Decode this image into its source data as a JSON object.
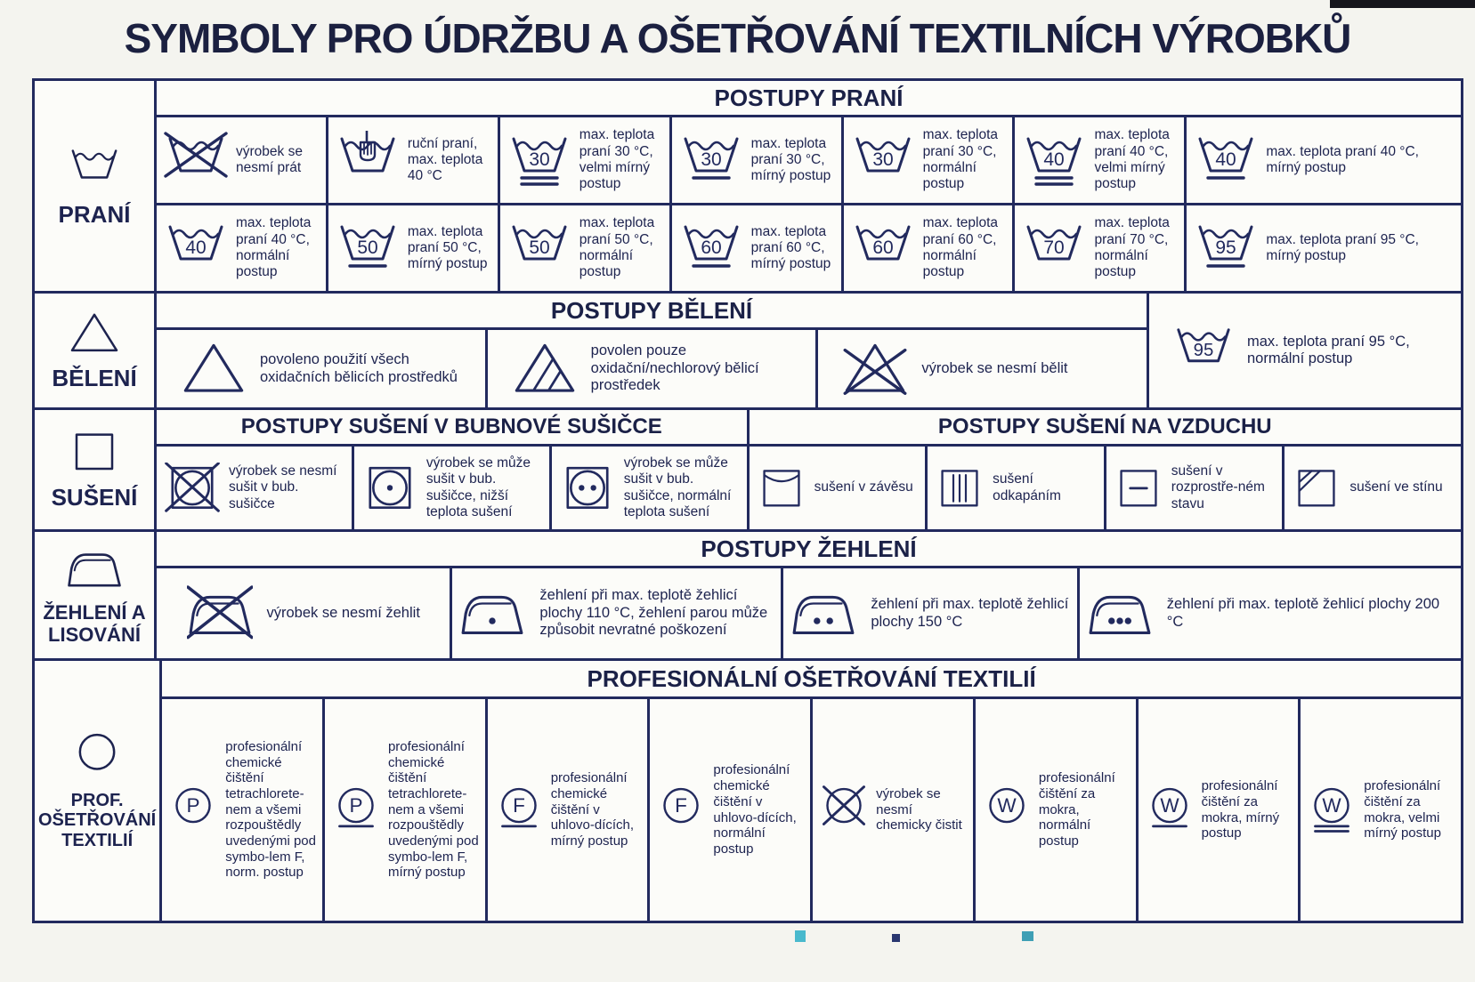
{
  "title": "SYMBOLY PRO ÚDRŽBU A OŠETŘOVÁNÍ TEXTILNÍCH VÝROBKŮ",
  "colors": {
    "ink": "#222a5e",
    "paper": "#f4f4ef",
    "cell": "#fcfcf9"
  },
  "sections": [
    {
      "id": "prani",
      "label": "PRANÍ",
      "label_icon": {
        "name": "washtub",
        "type": "washtub"
      },
      "header": "POSTUPY PRANÍ",
      "rows": [
        [
          {
            "name": "do-not-wash",
            "icon": {
              "type": "washtub",
              "crossed": true
            },
            "text": "výrobek se nesmí prát"
          },
          {
            "name": "hand-wash",
            "icon": {
              "type": "washtub",
              "hand": true
            },
            "text": "ruční praní, max. teplota 40 °C"
          },
          {
            "name": "wash-30-very-mild",
            "icon": {
              "type": "washtub",
              "number": "30",
              "bars": 2
            },
            "text": "max. teplota praní 30 °C, velmi mírný postup"
          },
          {
            "name": "wash-30-mild",
            "icon": {
              "type": "washtub",
              "number": "30",
              "bars": 1
            },
            "text": "max. teplota praní 30 °C, mírný postup"
          },
          {
            "name": "wash-30-normal",
            "icon": {
              "type": "washtub",
              "number": "30",
              "bars": 0
            },
            "text": "max. teplota praní 30 °C, normální postup"
          },
          {
            "name": "wash-40-very-mild",
            "icon": {
              "type": "washtub",
              "number": "40",
              "bars": 2
            },
            "text": "max. teplota praní 40 °C, velmi mírný postup"
          },
          {
            "name": "wash-40-mild",
            "icon": {
              "type": "washtub",
              "number": "40",
              "bars": 1
            },
            "text": "max. teplota praní 40 °C, mírný postup"
          }
        ],
        [
          {
            "name": "wash-40-normal",
            "icon": {
              "type": "washtub",
              "number": "40",
              "bars": 0
            },
            "text": "max. teplota praní 40 °C, normální postup"
          },
          {
            "name": "wash-50-mild",
            "icon": {
              "type": "washtub",
              "number": "50",
              "bars": 1
            },
            "text": "max. teplota praní 50 °C, mírný postup"
          },
          {
            "name": "wash-50-normal",
            "icon": {
              "type": "washtub",
              "number": "50",
              "bars": 0
            },
            "text": "max. teplota praní 50 °C, normální postup"
          },
          {
            "name": "wash-60-mild",
            "icon": {
              "type": "washtub",
              "number": "60",
              "bars": 1
            },
            "text": "max. teplota praní 60 °C, mírný postup"
          },
          {
            "name": "wash-60-normal",
            "icon": {
              "type": "washtub",
              "number": "60",
              "bars": 0
            },
            "text": "max. teplota praní 60 °C, normální postup"
          },
          {
            "name": "wash-70-normal",
            "icon": {
              "type": "washtub",
              "number": "70",
              "bars": 0
            },
            "text": "max. teplota praní 70 °C, normální postup"
          },
          {
            "name": "wash-95-mild",
            "icon": {
              "type": "washtub",
              "number": "95",
              "bars": 1
            },
            "text": "max. teplota praní 95 °C, mírný postup"
          }
        ]
      ]
    },
    {
      "id": "beleni",
      "label": "BĚLENÍ",
      "label_icon": {
        "name": "bleach-triangle",
        "type": "triangle",
        "variant": "plain"
      },
      "header": "POSTUPY BĚLENÍ",
      "cells": [
        {
          "name": "bleach-allowed",
          "icon": {
            "type": "triangle",
            "variant": "plain"
          },
          "text": "povoleno použití všech oxidačních bělicích prostředků"
        },
        {
          "name": "bleach-non-chlorine",
          "icon": {
            "type": "triangle",
            "variant": "lines"
          },
          "text": "povolen pouze oxidační/nechlorový bělicí prostředek"
        },
        {
          "name": "do-not-bleach",
          "icon": {
            "type": "triangle",
            "variant": "crossed"
          },
          "text": "výrobek se nesmí bělit"
        }
      ],
      "side_cell": {
        "name": "wash-95-normal",
        "icon": {
          "type": "washtub",
          "number": "95",
          "bars": 0
        },
        "text": "max. teplota praní 95 °C, normální postup"
      }
    },
    {
      "id": "suseni",
      "label": "SUŠENÍ",
      "label_icon": {
        "name": "drying-square",
        "type": "square",
        "variant": "plain"
      },
      "parts": [
        {
          "id": "drum",
          "header": "POSTUPY SUŠENÍ V BUBNOVÉ SUŠIČCE",
          "cells": [
            {
              "name": "do-not-tumble-dry",
              "icon": {
                "type": "square",
                "variant": "drum-crossed",
                "dots": 0
              },
              "text": "výrobek se nesmí sušit v bub. sušičce"
            },
            {
              "name": "tumble-dry-low",
              "icon": {
                "type": "square",
                "variant": "drum",
                "dots": 1
              },
              "text": "výrobek se může sušit v bub. sušičce, nižší teplota sušení"
            },
            {
              "name": "tumble-dry-normal",
              "icon": {
                "type": "square",
                "variant": "drum",
                "dots": 2
              },
              "text": "výrobek se může sušit v bub. sušičce, normální teplota sušení"
            }
          ]
        },
        {
          "id": "air",
          "header": "POSTUPY SUŠENÍ NA VZDUCHU",
          "cells": [
            {
              "name": "line-dry",
              "icon": {
                "type": "square",
                "variant": "hang"
              },
              "text": "sušení v závěsu"
            },
            {
              "name": "drip-dry",
              "icon": {
                "type": "square",
                "variant": "drip"
              },
              "text": "sušení odkapáním"
            },
            {
              "name": "dry-flat",
              "icon": {
                "type": "square",
                "variant": "flat"
              },
              "text": "sušení v rozprostře-ném stavu"
            },
            {
              "name": "dry-in-shade",
              "icon": {
                "type": "square",
                "variant": "shade"
              },
              "text": "sušení ve stínu"
            }
          ]
        }
      ]
    },
    {
      "id": "zehleni",
      "label": "ŽEHLENÍ A LISOVÁNÍ",
      "label_icon": {
        "name": "iron",
        "type": "iron"
      },
      "header": "POSTUPY ŽEHLENÍ",
      "cells": [
        {
          "name": "do-not-iron",
          "icon": {
            "type": "iron",
            "crossed": true
          },
          "text": "výrobek se nesmí žehlit"
        },
        {
          "name": "iron-110",
          "icon": {
            "type": "iron",
            "dots": 1
          },
          "text": "žehlení při max. teplotě žehlicí plochy 110 °C, žehlení parou může způsobit nevratné poškození"
        },
        {
          "name": "iron-150",
          "icon": {
            "type": "iron",
            "dots": 2
          },
          "text": "žehlení při max. teplotě žehlicí plochy 150 °C"
        },
        {
          "name": "iron-200",
          "icon": {
            "type": "iron",
            "dots": 3
          },
          "text": "žehlení při max. teplotě žehlicí plochy 200 °C"
        }
      ]
    },
    {
      "id": "prof",
      "label": "PROF. OŠETŘOVÁNÍ TEXTILIÍ",
      "label_icon": {
        "name": "circle",
        "type": "circle"
      },
      "header": "PROFESIONÁLNÍ OŠETŘOVÁNÍ TEXTILIÍ",
      "cells": [
        {
          "name": "dry-clean-P",
          "icon": {
            "type": "circle",
            "letter": "P",
            "bars": 0
          },
          "text": "profesionální chemické čištění tetrachlorete-nem a všemi rozpouštědly uvedenými pod symbo-lem F, norm. postup"
        },
        {
          "name": "dry-clean-P-mild",
          "icon": {
            "type": "circle",
            "letter": "P",
            "bars": 1
          },
          "text": "profesionální chemické čištění tetrachlorete-nem a všemi rozpouštědly uvedenými pod symbo-lem F, mírný postup"
        },
        {
          "name": "dry-clean-F-mild",
          "icon": {
            "type": "circle",
            "letter": "F",
            "bars": 1
          },
          "text": "profesionální chemické čištění v uhlovo-dících, mírný postup"
        },
        {
          "name": "dry-clean-F",
          "icon": {
            "type": "circle",
            "letter": "F",
            "bars": 0
          },
          "text": "profesionální chemické čištění v uhlovo-dících, normální postup"
        },
        {
          "name": "do-not-dry-clean",
          "icon": {
            "type": "circle",
            "crossed": true
          },
          "text": "výrobek se nesmí chemicky čistit"
        },
        {
          "name": "wet-clean-W",
          "icon": {
            "type": "circle",
            "letter": "W",
            "bars": 0
          },
          "text": "profesionální čištění za mokra, normální postup"
        },
        {
          "name": "wet-clean-W-mild",
          "icon": {
            "type": "circle",
            "letter": "W",
            "bars": 1
          },
          "text": "profesionální čištění za mokra, mírný postup"
        },
        {
          "name": "wet-clean-W-very-mild",
          "icon": {
            "type": "circle",
            "letter": "W",
            "bars": 2
          },
          "text": "profesionální čištění za mokra, velmi mírný postup"
        }
      ]
    }
  ]
}
